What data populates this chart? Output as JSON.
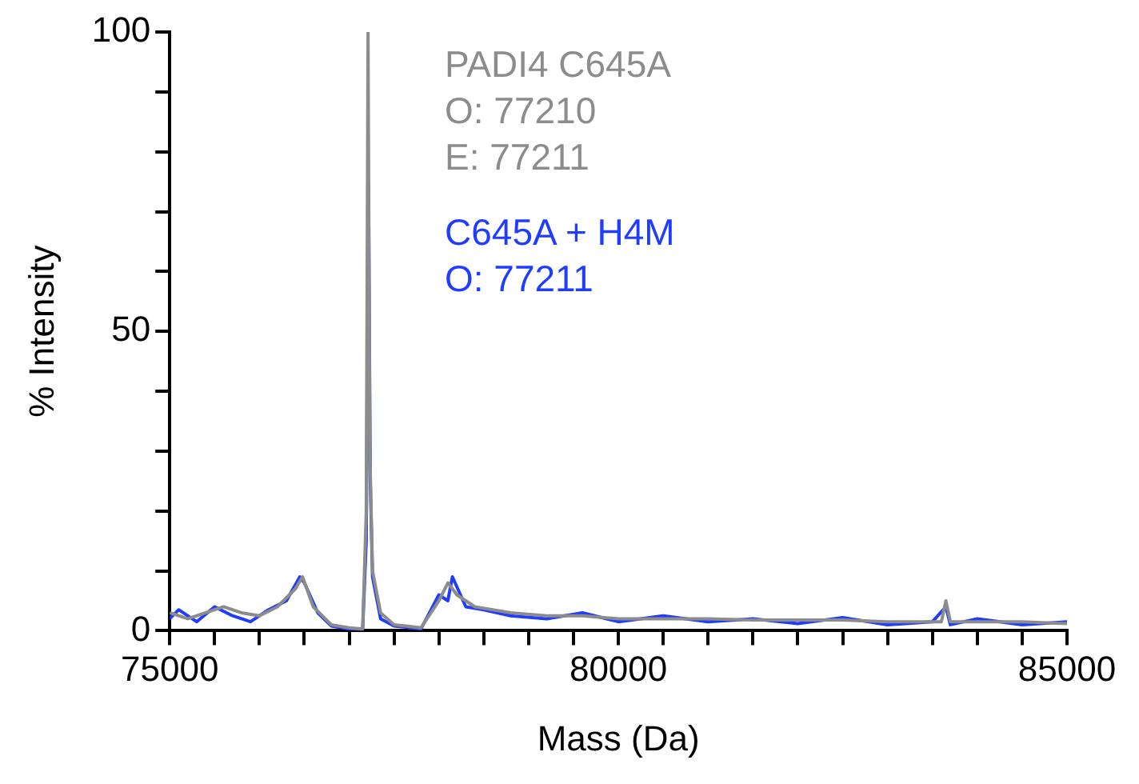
{
  "chart_data": {
    "type": "line",
    "xlabel": "Mass (Da)",
    "ylabel": "% Intensity",
    "xlim": [
      75000,
      85000
    ],
    "ylim": [
      0,
      100
    ],
    "xticks": [
      75000,
      {
        "value": 75500,
        "label": null
      },
      {
        "value": 76000,
        "label": null
      },
      {
        "value": 76500,
        "label": null
      },
      {
        "value": 77000,
        "label": null
      },
      {
        "value": 77500,
        "label": null
      },
      {
        "value": 78000,
        "label": null
      },
      {
        "value": 78500,
        "label": null
      },
      {
        "value": 79000,
        "label": null
      },
      {
        "value": 79500,
        "label": null
      },
      80000,
      {
        "value": 80500,
        "label": null
      },
      {
        "value": 81000,
        "label": null
      },
      {
        "value": 81500,
        "label": null
      },
      {
        "value": 82000,
        "label": null
      },
      {
        "value": 82500,
        "label": null
      },
      {
        "value": 83000,
        "label": null
      },
      {
        "value": 83500,
        "label": null
      },
      {
        "value": 84000,
        "label": null
      },
      {
        "value": 84500,
        "label": null
      },
      85000
    ],
    "yticks": [
      0,
      {
        "value": 10,
        "label": null
      },
      {
        "value": 20,
        "label": null
      },
      {
        "value": 30,
        "label": null
      },
      {
        "value": 40,
        "label": null
      },
      50,
      {
        "value": 60,
        "label": null
      },
      {
        "value": 70,
        "label": null
      },
      {
        "value": 80,
        "label": null
      },
      {
        "value": 90,
        "label": null
      },
      100
    ],
    "grid": false,
    "legend": "top",
    "marker": "none",
    "line_style": "solid",
    "annotations": [
      "O: 77210",
      "E: 77211",
      "O: 77211"
    ],
    "series": [
      {
        "name": "PADI4 C645A",
        "color": "#8c8c8c",
        "x": [
          75000,
          75200,
          75400,
          75600,
          75800,
          76000,
          76200,
          76400,
          76480,
          76600,
          76800,
          77000,
          77150,
          77190,
          77210,
          77230,
          77260,
          77350,
          77500,
          77800,
          78000,
          78100,
          78200,
          78400,
          78800,
          79200,
          79600,
          80000,
          80500,
          81000,
          81500,
          82000,
          82500,
          83000,
          83600,
          83650,
          83700,
          84000,
          84500,
          85000
        ],
        "values": [
          3,
          2,
          3,
          4,
          3,
          2.5,
          4,
          7,
          9,
          4,
          1,
          0.5,
          0.3,
          20,
          100,
          30,
          10,
          3,
          1,
          0.5,
          5,
          8,
          6,
          4,
          3,
          2.5,
          2.5,
          2,
          2,
          2,
          1.8,
          1.8,
          1.8,
          1.5,
          1.5,
          5,
          1.5,
          1.5,
          1.5,
          1.2
        ]
      },
      {
        "name": "C645A + H4M",
        "color": "#1f3cff",
        "x": [
          75000,
          75100,
          75300,
          75500,
          75700,
          75900,
          76100,
          76300,
          76450,
          76500,
          76650,
          76800,
          77000,
          77150,
          77190,
          77215,
          77235,
          77260,
          77350,
          77500,
          77800,
          78000,
          78100,
          78150,
          78300,
          78500,
          78800,
          79200,
          79600,
          80000,
          80500,
          81000,
          81500,
          82000,
          82500,
          83000,
          83500,
          83650,
          83700,
          84000,
          84500,
          85000
        ],
        "values": [
          2,
          3.5,
          1.5,
          4,
          2.5,
          1.5,
          3.5,
          5,
          9,
          8,
          3,
          0.8,
          0.3,
          0.2,
          15,
          75,
          25,
          9,
          2,
          0.8,
          0.3,
          6,
          5,
          9,
          4,
          3.5,
          2.5,
          2,
          3,
          1.5,
          2.5,
          1.5,
          2,
          1.2,
          2.2,
          1,
          1.5,
          4,
          1,
          2,
          1,
          1.5
        ]
      }
    ]
  }
}
